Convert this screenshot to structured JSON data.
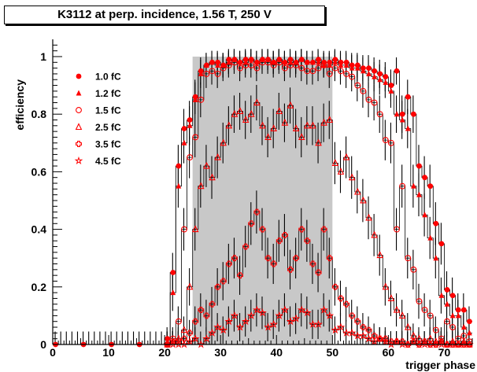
{
  "chart_data": {
    "type": "scatter",
    "title": "K3112 at perp. incidence, 1.56 T, 250 V",
    "xlabel": "trigger phase",
    "ylabel": "efficiency",
    "xlim": [
      0,
      75
    ],
    "ylim": [
      0,
      1.06
    ],
    "x_ticks": [
      "0",
      "10",
      "20",
      "30",
      "40",
      "50",
      "60",
      "70"
    ],
    "y_ticks": [
      "0",
      "0.2",
      "0.4",
      "0.6",
      "0.8",
      "1"
    ],
    "grid": false,
    "legend_position": "top-left",
    "shaded_region": {
      "x_start": 25,
      "x_end": 50,
      "color": "#c8c8c8"
    },
    "marker_color": "#ff0000",
    "series": [
      {
        "name": "1.0 fC",
        "marker": "filled-circle",
        "x": [
          0,
          5,
          10,
          15,
          20,
          21,
          22,
          23,
          24,
          25,
          26,
          27,
          28,
          29,
          30,
          31,
          32,
          33,
          34,
          35,
          36,
          37,
          38,
          39,
          40,
          41,
          42,
          43,
          44,
          45,
          46,
          47,
          48,
          49,
          50,
          51,
          52,
          53,
          54,
          55,
          56,
          57,
          58,
          59,
          60,
          61,
          62,
          63,
          64,
          65,
          66,
          67,
          68,
          69,
          70,
          71,
          72,
          73,
          74
        ],
        "y": [
          0,
          0,
          0,
          0,
          0.02,
          0.25,
          0.62,
          0.75,
          0.78,
          0.86,
          0.95,
          0.97,
          0.98,
          0.98,
          0.97,
          0.99,
          0.99,
          0.98,
          0.99,
          0.99,
          0.98,
          0.99,
          0.99,
          0.98,
          0.99,
          0.98,
          0.99,
          0.98,
          0.99,
          0.98,
          0.98,
          0.99,
          0.98,
          0.98,
          0.99,
          0.98,
          0.98,
          0.97,
          0.97,
          0.96,
          0.96,
          0.95,
          0.94,
          0.93,
          0.9,
          0.95,
          0.8,
          0.86,
          0.8,
          0.62,
          0.58,
          0.55,
          0.42,
          0.35,
          0.19,
          0.17,
          0.12,
          0.12,
          0.08
        ]
      },
      {
        "name": "1.2 fC",
        "marker": "filled-triangle",
        "x": [
          20,
          21,
          22,
          23,
          24,
          25,
          26,
          27,
          28,
          29,
          30,
          31,
          32,
          33,
          34,
          35,
          36,
          37,
          38,
          39,
          40,
          41,
          42,
          43,
          44,
          45,
          46,
          47,
          48,
          49,
          50,
          51,
          52,
          53,
          54,
          55,
          56,
          57,
          58,
          59,
          60,
          61,
          62,
          63,
          64,
          65,
          66,
          67,
          68,
          69,
          70,
          71,
          72,
          73,
          74
        ],
        "y": [
          0,
          0.18,
          0.55,
          0.7,
          0.76,
          0.85,
          0.94,
          0.97,
          0.98,
          0.97,
          0.97,
          0.98,
          0.99,
          0.98,
          0.98,
          0.99,
          0.98,
          0.99,
          0.99,
          0.98,
          0.99,
          0.98,
          0.98,
          0.98,
          0.99,
          0.98,
          0.98,
          0.98,
          0.97,
          0.97,
          0.98,
          0.97,
          0.97,
          0.96,
          0.96,
          0.95,
          0.94,
          0.93,
          0.92,
          0.91,
          0.88,
          0.8,
          0.78,
          0.75,
          0.55,
          0.52,
          0.45,
          0.37,
          0.3,
          0.17,
          0.14,
          0.1,
          0.1,
          0.06,
          0.04
        ]
      },
      {
        "name": "1.5 fC",
        "marker": "open-circle",
        "x": [
          20,
          21,
          22,
          23,
          24,
          25,
          26,
          27,
          28,
          29,
          30,
          31,
          32,
          33,
          34,
          35,
          36,
          37,
          38,
          39,
          40,
          41,
          42,
          43,
          44,
          45,
          46,
          47,
          48,
          49,
          50,
          51,
          52,
          53,
          54,
          55,
          56,
          57,
          58,
          59,
          60,
          61,
          62,
          63,
          64,
          65,
          66,
          67,
          68,
          69,
          70,
          71,
          72,
          73,
          74
        ],
        "y": [
          0,
          0.02,
          0.08,
          0.4,
          0.65,
          0.72,
          0.85,
          0.94,
          0.95,
          0.94,
          0.96,
          0.97,
          0.98,
          0.96,
          0.97,
          0.97,
          0.96,
          0.98,
          0.98,
          0.97,
          0.98,
          0.96,
          0.97,
          0.97,
          0.96,
          0.95,
          0.95,
          0.96,
          0.97,
          0.94,
          0.96,
          0.95,
          0.94,
          0.93,
          0.9,
          0.88,
          0.85,
          0.84,
          0.8,
          0.71,
          0.7,
          0.4,
          0.55,
          0.3,
          0.26,
          0.15,
          0.12,
          0.1,
          0.05,
          0.02,
          0.08,
          0.06,
          0.02,
          0.03,
          0.01
        ]
      },
      {
        "name": "2.5 fC",
        "marker": "open-triangle",
        "x": [
          20,
          21,
          22,
          23,
          24,
          25,
          26,
          27,
          28,
          29,
          30,
          31,
          32,
          33,
          34,
          35,
          36,
          37,
          38,
          39,
          40,
          41,
          42,
          43,
          44,
          45,
          46,
          47,
          48,
          49,
          50,
          51,
          52,
          53,
          54,
          55,
          56,
          57,
          58,
          59,
          60,
          61,
          62,
          63,
          64,
          65,
          66,
          67,
          68,
          69,
          70,
          71,
          72,
          73,
          74
        ],
        "y": [
          0,
          0.01,
          0.02,
          0.05,
          0.2,
          0.4,
          0.55,
          0.62,
          0.58,
          0.65,
          0.7,
          0.76,
          0.8,
          0.81,
          0.78,
          0.8,
          0.84,
          0.76,
          0.72,
          0.75,
          0.81,
          0.77,
          0.83,
          0.75,
          0.72,
          0.76,
          0.76,
          0.7,
          0.77,
          0.78,
          0.63,
          0.6,
          0.65,
          0.58,
          0.53,
          0.5,
          0.44,
          0.38,
          0.31,
          0.2,
          0.16,
          0.12,
          0.1,
          0.06,
          0.03,
          0.02,
          0.01,
          0.02,
          0.01,
          0.01,
          0.0,
          0.01,
          0.0,
          0.01,
          0.0
        ]
      },
      {
        "name": "3.5 fC",
        "marker": "open-cross",
        "x": [
          20,
          21,
          22,
          23,
          24,
          25,
          26,
          27,
          28,
          29,
          30,
          31,
          32,
          33,
          34,
          35,
          36,
          37,
          38,
          39,
          40,
          41,
          42,
          43,
          44,
          45,
          46,
          47,
          48,
          49,
          50,
          51,
          52,
          53,
          54,
          55,
          56,
          57,
          58,
          59,
          60,
          61,
          62,
          63,
          64,
          65,
          66,
          67,
          68,
          69,
          70,
          71,
          72,
          73,
          74
        ],
        "y": [
          0,
          0.01,
          0.01,
          0.02,
          0.04,
          0.08,
          0.12,
          0.1,
          0.14,
          0.2,
          0.22,
          0.28,
          0.3,
          0.24,
          0.34,
          0.42,
          0.46,
          0.4,
          0.3,
          0.28,
          0.36,
          0.38,
          0.26,
          0.3,
          0.4,
          0.36,
          0.28,
          0.25,
          0.4,
          0.3,
          0.2,
          0.16,
          0.14,
          0.1,
          0.08,
          0.06,
          0.05,
          0.03,
          0.02,
          0.02,
          0.01,
          0.01,
          0.01,
          0.0,
          0.01,
          0.0,
          0.01,
          0.0,
          0.0,
          0.01,
          0.0,
          0.0,
          0.0,
          0.0,
          0.0
        ]
      },
      {
        "name": "4.5 fC",
        "marker": "open-star",
        "x": [
          20,
          21,
          22,
          23,
          24,
          25,
          26,
          27,
          28,
          29,
          30,
          31,
          32,
          33,
          34,
          35,
          36,
          37,
          38,
          39,
          40,
          41,
          42,
          43,
          44,
          45,
          46,
          47,
          48,
          49,
          50,
          51,
          52,
          53,
          54,
          55,
          56,
          57,
          58,
          59,
          60,
          61,
          62,
          63,
          64,
          65,
          66,
          67,
          68,
          69,
          70,
          71,
          72,
          73,
          74
        ],
        "y": [
          0,
          0.0,
          0.0,
          0.0,
          0.01,
          0.02,
          0.0,
          0.02,
          0.04,
          0.06,
          0.05,
          0.08,
          0.1,
          0.06,
          0.08,
          0.1,
          0.12,
          0.11,
          0.06,
          0.07,
          0.1,
          0.12,
          0.08,
          0.09,
          0.12,
          0.11,
          0.07,
          0.07,
          0.12,
          0.1,
          0.05,
          0.06,
          0.04,
          0.04,
          0.03,
          0.03,
          0.02,
          0.01,
          0.02,
          0.01,
          0.0,
          0.01,
          0.0,
          0.0,
          0.01,
          0.0,
          0.0,
          0.0,
          0.0,
          0.0,
          0.0,
          0.0,
          0.0,
          0.0,
          0.0
        ]
      }
    ]
  }
}
